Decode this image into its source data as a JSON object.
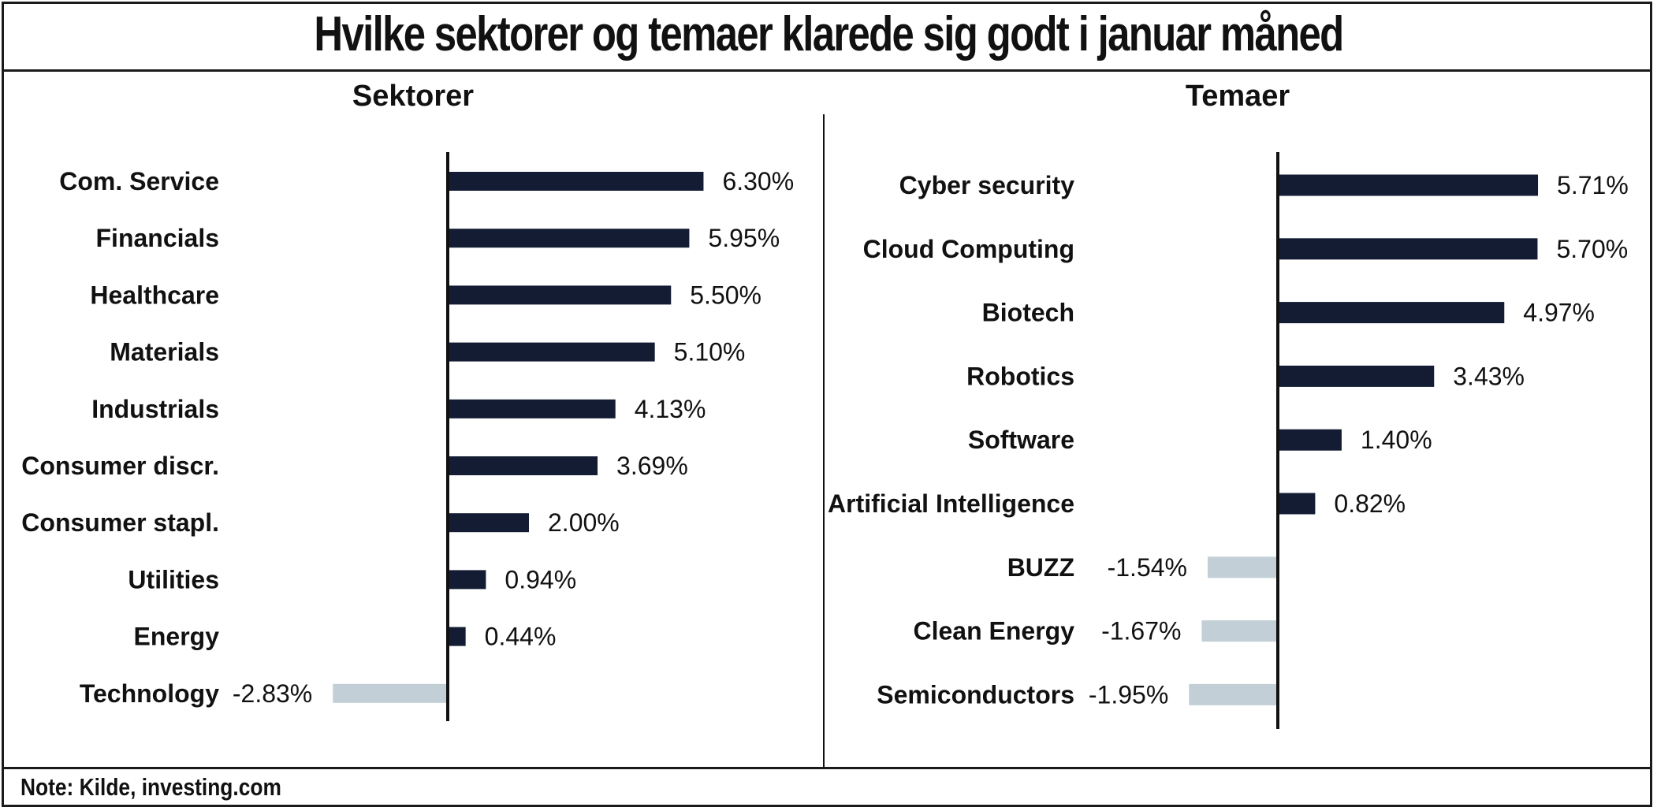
{
  "title": "Hvilke sektorer og temaer klarede sig godt i januar måned",
  "note": "Note: Kilde, investing.com",
  "colors": {
    "positive": "#131c33",
    "negative": "#c3cfd7",
    "axis": "#111111",
    "text": "#111111"
  },
  "chart_data": [
    {
      "type": "bar",
      "orientation": "horizontal",
      "title": "Sektorer",
      "unit": "%",
      "categories": [
        "Com. Service",
        "Financials",
        "Healthcare",
        "Materials",
        "Industrials",
        "Consumer discr.",
        "Consumer stapl.",
        "Utilities",
        "Energy",
        "Technology"
      ],
      "values": [
        6.3,
        5.95,
        5.5,
        5.1,
        4.13,
        3.69,
        2.0,
        0.94,
        0.44,
        -2.83
      ],
      "labels": [
        "6.30%",
        "5.95%",
        "5.50%",
        "5.10%",
        "4.13%",
        "3.69%",
        "2.00%",
        "0.94%",
        "0.44%",
        "-2.83%"
      ],
      "grid": false,
      "legend": "none"
    },
    {
      "type": "bar",
      "orientation": "horizontal",
      "title": "Temaer",
      "unit": "%",
      "categories": [
        "Cyber security",
        "Cloud Computing",
        "Biotech",
        "Robotics",
        "Software",
        "Artificial Intelligence",
        "BUZZ",
        "Clean Energy",
        "Semiconductors"
      ],
      "values": [
        5.71,
        5.7,
        4.97,
        3.43,
        1.4,
        0.82,
        -1.54,
        -1.67,
        -1.95
      ],
      "labels": [
        "5.71%",
        "5.70%",
        "4.97%",
        "3.43%",
        "1.40%",
        "0.82%",
        "-1.54%",
        "-1.67%",
        "-1.95%"
      ],
      "grid": false,
      "legend": "none"
    }
  ]
}
